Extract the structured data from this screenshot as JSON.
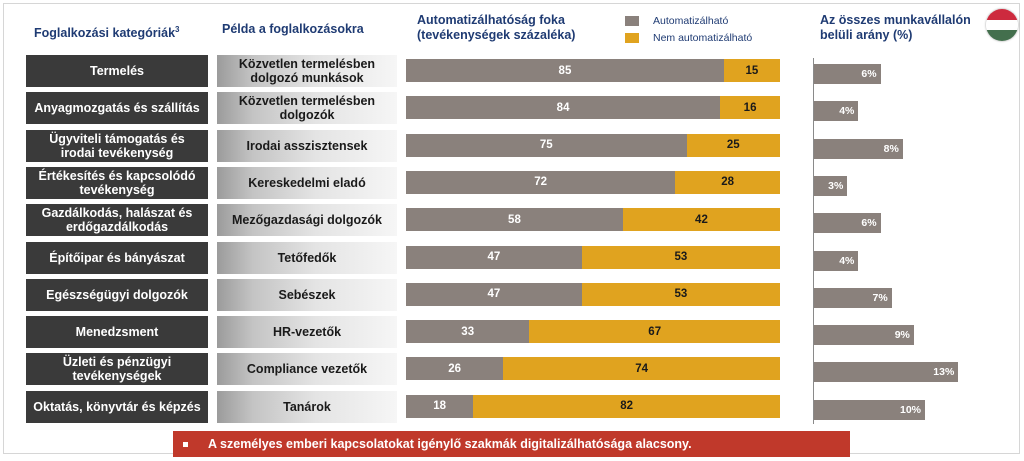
{
  "headers": {
    "category": "Foglalkozási kategóriák",
    "category_sup": "3",
    "example": "Példa a foglalkozásokra",
    "automation_line1": "Automatizálhatóság foka",
    "automation_line2": "(tevékenységek százaléka)",
    "share_line1": "Az összes munkavállalón",
    "share_line2": "belüli arány (%)"
  },
  "legend": {
    "automatable": "Automatizálható",
    "not_automatable": "Nem automatizálható"
  },
  "colors": {
    "automatable": "#8a817c",
    "not_automatable": "#e0a31f",
    "category_bg": "#3a3a3a",
    "banner": "#c0392b",
    "header_text": "#1f3b73"
  },
  "flag": "hungary-flag-icon",
  "chart_data": {
    "type": "bar",
    "title": "Automatizálhatóság foka (tevékenységek százaléka)",
    "categories": [
      "Termelés",
      "Anyagmozgatás és szállítás",
      "Ügyviteli támogatás és irodai tevékenység",
      "Értékesítés és kapcsolódó tevékenység",
      "Gazdálkodás, halászat és erdőgazdálkodás",
      "Építőipar és bányászat",
      "Egészségügyi dolgozók",
      "Menedzsment",
      "Üzleti és pénzügyi tevékenységek",
      "Oktatás, könyvtár és képzés"
    ],
    "examples": [
      "Közvetlen termelésben dolgozó munkások",
      "Közvetlen termelésben dolgozók",
      "Irodai asszisztensek",
      "Kereskedelmi eladó",
      "Mezőgazdasági dolgozók",
      "Tetőfedők",
      "Sebészek",
      "HR-vezetők",
      "Compliance vezetők",
      "Tanárok"
    ],
    "series": [
      {
        "name": "Automatizálható",
        "values": [
          85,
          84,
          75,
          72,
          58,
          47,
          47,
          33,
          26,
          18
        ]
      },
      {
        "name": "Nem automatizálható",
        "values": [
          15,
          16,
          25,
          28,
          42,
          53,
          53,
          67,
          74,
          82
        ]
      }
    ],
    "share": {
      "title": "Az összes munkavállalón belüli arány (%)",
      "values": [
        6,
        4,
        8,
        3,
        6,
        4,
        7,
        9,
        13,
        10
      ],
      "labels": [
        "6%",
        "4%",
        "8%",
        "3%",
        "6%",
        "4%",
        "7%",
        "9%",
        "13%",
        "10%"
      ]
    },
    "ylim": [
      0,
      100
    ]
  },
  "banner": {
    "text": "A személyes emberi kapcsolatokat igénylő szakmák digitalizálhatósága alacsony."
  }
}
